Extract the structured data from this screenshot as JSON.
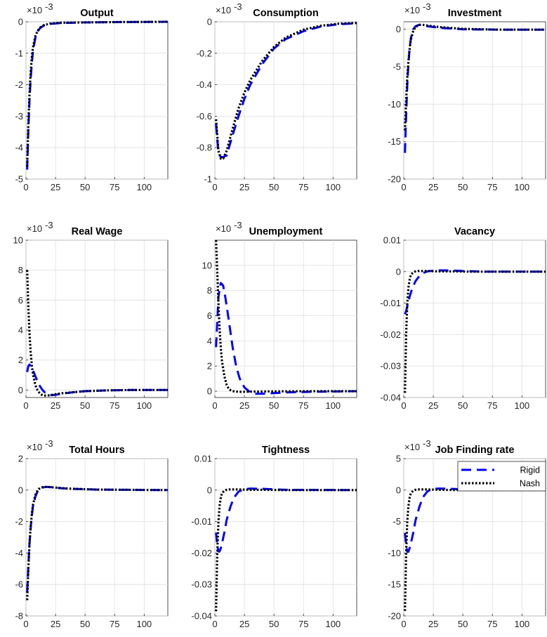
{
  "figure": {
    "legend": {
      "placement": "top-right",
      "entries": [
        "Rigid",
        "Nash"
      ]
    },
    "series_styles": {
      "Rigid": {
        "color": "#0000ff",
        "dash": "dashed"
      },
      "Nash": {
        "color": "#000000",
        "dash": "dotted"
      }
    }
  },
  "chart_data": [
    {
      "type": "line",
      "title": "Output",
      "xlabel": "",
      "ylabel": "",
      "exponent_label": "×10",
      "exponent_power": "-3",
      "xlim": [
        0,
        120
      ],
      "ylim": [
        -5,
        0
      ],
      "xticks": [
        0,
        25,
        50,
        75,
        100
      ],
      "xtick_labels": [
        "0",
        "25",
        "50",
        "75",
        "100"
      ],
      "yticks": [
        -5,
        -4,
        -3,
        -2,
        -1,
        0
      ],
      "ytick_labels": [
        "-5",
        "-4",
        "-3",
        "-2",
        "-1",
        "0"
      ],
      "grid": true,
      "series": [
        {
          "name": "Rigid",
          "x": [
            1,
            2,
            3,
            4,
            5,
            6,
            8,
            10,
            12,
            15,
            20,
            30,
            50,
            80,
            120
          ],
          "y": [
            -4.7,
            -3.4,
            -2.5,
            -1.8,
            -1.3,
            -0.9,
            -0.5,
            -0.3,
            -0.2,
            -0.12,
            -0.07,
            -0.04,
            -0.02,
            -0.01,
            0
          ]
        },
        {
          "name": "Nash",
          "x": [
            1,
            2,
            3,
            4,
            5,
            6,
            8,
            10,
            12,
            15,
            20,
            30,
            50,
            80,
            120
          ],
          "y": [
            -4.6,
            -3.2,
            -2.3,
            -1.6,
            -1.1,
            -0.8,
            -0.45,
            -0.28,
            -0.18,
            -0.11,
            -0.06,
            -0.03,
            -0.02,
            -0.01,
            0
          ]
        }
      ]
    },
    {
      "type": "line",
      "title": "Consumption",
      "xlabel": "",
      "ylabel": "",
      "exponent_label": "×10",
      "exponent_power": "-3",
      "xlim": [
        0,
        120
      ],
      "ylim": [
        -1,
        0
      ],
      "xticks": [
        0,
        25,
        50,
        75,
        100
      ],
      "xtick_labels": [
        "0",
        "25",
        "50",
        "75",
        "100"
      ],
      "yticks": [
        -1,
        -0.8,
        -0.6,
        -0.4,
        -0.2,
        0
      ],
      "ytick_labels": [
        "-1",
        "-0.8",
        "-0.6",
        "-0.4",
        "-0.2",
        "0"
      ],
      "grid": true,
      "series": [
        {
          "name": "Rigid",
          "x": [
            1,
            2,
            3,
            5,
            7,
            10,
            15,
            20,
            25,
            30,
            40,
            50,
            60,
            75,
            90,
            105,
            120
          ],
          "y": [
            -0.65,
            -0.75,
            -0.83,
            -0.86,
            -0.86,
            -0.85,
            -0.72,
            -0.6,
            -0.49,
            -0.4,
            -0.27,
            -0.17,
            -0.11,
            -0.06,
            -0.03,
            -0.015,
            -0.01
          ]
        },
        {
          "name": "Nash",
          "x": [
            1,
            2,
            3,
            5,
            7,
            10,
            15,
            20,
            25,
            30,
            40,
            50,
            60,
            75,
            90,
            105,
            120
          ],
          "y": [
            -0.62,
            -0.72,
            -0.82,
            -0.87,
            -0.87,
            -0.82,
            -0.68,
            -0.55,
            -0.45,
            -0.37,
            -0.25,
            -0.16,
            -0.1,
            -0.05,
            -0.025,
            -0.012,
            -0.008
          ]
        }
      ]
    },
    {
      "type": "line",
      "title": "Investment",
      "xlabel": "",
      "ylabel": "",
      "exponent_label": "×10",
      "exponent_power": "-3",
      "xlim": [
        0,
        120
      ],
      "ylim": [
        -20,
        1
      ],
      "xticks": [
        0,
        25,
        50,
        75,
        100
      ],
      "xtick_labels": [
        "0",
        "25",
        "50",
        "75",
        "100"
      ],
      "yticks": [
        -20,
        -15,
        -10,
        -5,
        0
      ],
      "ytick_labels": [
        "-20",
        "-15",
        "-10",
        "-5",
        "0"
      ],
      "grid": true,
      "series": [
        {
          "name": "Rigid",
          "x": [
            1,
            2,
            3,
            4,
            5,
            6,
            8,
            10,
            13,
            16,
            20,
            30,
            50,
            80,
            120
          ],
          "y": [
            -16.5,
            -11.5,
            -7.5,
            -4.5,
            -2.5,
            -1.2,
            0,
            0.4,
            0.6,
            0.5,
            0.4,
            0.2,
            0,
            -0.05,
            -0.05
          ]
        },
        {
          "name": "Nash",
          "x": [
            1,
            2,
            3,
            4,
            5,
            6,
            8,
            10,
            13,
            16,
            20,
            30,
            50,
            80,
            120
          ],
          "y": [
            -13.5,
            -9.5,
            -6.5,
            -4.2,
            -2.6,
            -1.4,
            -0.2,
            0.3,
            0.6,
            0.6,
            0.5,
            0.3,
            0.05,
            -0.05,
            -0.05
          ]
        }
      ]
    },
    {
      "type": "line",
      "title": "Real Wage",
      "xlabel": "",
      "ylabel": "",
      "exponent_label": "×10",
      "exponent_power": "-3",
      "xlim": [
        0,
        120
      ],
      "ylim": [
        -0.5,
        10
      ],
      "xticks": [
        0,
        25,
        50,
        75,
        100
      ],
      "xtick_labels": [
        "0",
        "25",
        "50",
        "75",
        "100"
      ],
      "yticks": [
        0,
        2,
        4,
        6,
        8,
        10
      ],
      "ytick_labels": [
        "0",
        "2",
        "4",
        "6",
        "8",
        "10"
      ],
      "grid": true,
      "series": [
        {
          "name": "Rigid",
          "x": [
            1,
            2,
            3,
            5,
            8,
            11,
            14,
            17,
            20,
            25,
            30,
            40,
            50,
            70,
            90,
            120
          ],
          "y": [
            1.2,
            1.6,
            1.7,
            1.5,
            0.9,
            0.35,
            0.0,
            -0.25,
            -0.35,
            -0.32,
            -0.25,
            -0.15,
            -0.08,
            -0.02,
            0.0,
            0.0
          ]
        },
        {
          "name": "Nash",
          "x": [
            1,
            2,
            3,
            4,
            5,
            6,
            8,
            10,
            12,
            14,
            17,
            20,
            25,
            30,
            40,
            50,
            70,
            90,
            120
          ],
          "y": [
            8.0,
            5.5,
            3.8,
            2.5,
            1.6,
            1.0,
            0.3,
            -0.05,
            -0.25,
            -0.35,
            -0.38,
            -0.35,
            -0.28,
            -0.22,
            -0.15,
            -0.08,
            -0.02,
            0.0,
            0.0
          ]
        }
      ]
    },
    {
      "type": "line",
      "title": "Unemployment",
      "xlabel": "",
      "ylabel": "",
      "exponent_label": "×10",
      "exponent_power": "-3",
      "xlim": [
        0,
        120
      ],
      "ylim": [
        -0.5,
        12
      ],
      "xticks": [
        0,
        25,
        50,
        75,
        100
      ],
      "xtick_labels": [
        "0",
        "25",
        "50",
        "75",
        "100"
      ],
      "yticks": [
        0,
        2,
        4,
        6,
        8,
        10
      ],
      "ytick_labels": [
        "0",
        "2",
        "4",
        "6",
        "8",
        "10"
      ],
      "grid": true,
      "series": [
        {
          "name": "Rigid",
          "x": [
            1,
            2,
            3,
            5,
            7,
            9,
            12,
            15,
            18,
            21,
            25,
            30,
            35,
            40,
            50,
            60,
            80,
            120
          ],
          "y": [
            3.5,
            5.5,
            7.5,
            8.6,
            8.4,
            7.4,
            5.5,
            3.5,
            2.0,
            1.0,
            0.3,
            -0.1,
            -0.2,
            -0.2,
            -0.15,
            -0.1,
            -0.05,
            0.0
          ]
        },
        {
          "name": "Nash",
          "x": [
            1,
            2,
            3,
            4,
            5,
            6,
            8,
            10,
            12,
            15,
            20,
            25,
            30,
            40,
            50,
            80,
            120
          ],
          "y": [
            12.0,
            9.5,
            7.0,
            5.0,
            3.5,
            2.4,
            1.2,
            0.5,
            0.15,
            0.0,
            -0.05,
            -0.05,
            -0.03,
            -0.02,
            -0.01,
            0.0,
            0.0
          ]
        }
      ]
    },
    {
      "type": "line",
      "title": "Vacancy",
      "xlabel": "",
      "ylabel": "",
      "exponent_label": "",
      "exponent_power": "",
      "xlim": [
        0,
        120
      ],
      "ylim": [
        -0.04,
        0.01
      ],
      "xticks": [
        0,
        25,
        50,
        75,
        100
      ],
      "xtick_labels": [
        "0",
        "25",
        "50",
        "75",
        "100"
      ],
      "yticks": [
        -0.04,
        -0.03,
        -0.02,
        -0.01,
        0,
        0.01
      ],
      "ytick_labels": [
        "-0.04",
        "-0.03",
        "-0.02",
        "-0.01",
        "0",
        "0.01"
      ],
      "grid": true,
      "series": [
        {
          "name": "Rigid",
          "x": [
            1,
            2,
            3,
            5,
            7,
            10,
            13,
            16,
            20,
            25,
            30,
            40,
            50,
            70,
            120
          ],
          "y": [
            -0.0135,
            -0.0125,
            -0.011,
            -0.008,
            -0.0055,
            -0.003,
            -0.0015,
            -0.0005,
            0.0001,
            0.0003,
            0.0004,
            0.0004,
            0.0002,
            0.0,
            0.0
          ]
        },
        {
          "name": "Nash",
          "x": [
            1,
            2,
            3,
            4,
            5,
            6,
            8,
            10,
            12,
            15,
            20,
            30,
            40,
            60,
            120
          ],
          "y": [
            -0.0385,
            -0.02,
            -0.01,
            -0.005,
            -0.0025,
            -0.001,
            -0.0002,
            0.0001,
            0.0002,
            0.0002,
            0.0002,
            0.0001,
            0.0001,
            0.0,
            0.0
          ]
        }
      ]
    },
    {
      "type": "line",
      "title": "Total Hours",
      "xlabel": "",
      "ylabel": "",
      "exponent_label": "×10",
      "exponent_power": "-3",
      "xlim": [
        0,
        120
      ],
      "ylim": [
        -8,
        2
      ],
      "xticks": [
        0,
        25,
        50,
        75,
        100
      ],
      "xtick_labels": [
        "0",
        "25",
        "50",
        "75",
        "100"
      ],
      "yticks": [
        -8,
        -6,
        -4,
        -2,
        0,
        2
      ],
      "ytick_labels": [
        "-8",
        "-6",
        "-4",
        "-2",
        "0",
        "2"
      ],
      "grid": true,
      "series": [
        {
          "name": "Rigid",
          "x": [
            1,
            2,
            3,
            4,
            5,
            6,
            8,
            10,
            12,
            15,
            18,
            22,
            30,
            40,
            60,
            120
          ],
          "y": [
            -6.5,
            -4.8,
            -3.4,
            -2.4,
            -1.6,
            -1.0,
            -0.4,
            -0.05,
            0.1,
            0.18,
            0.2,
            0.18,
            0.12,
            0.08,
            0.03,
            0.0
          ]
        },
        {
          "name": "Nash",
          "x": [
            1,
            2,
            3,
            4,
            5,
            6,
            8,
            10,
            12,
            15,
            18,
            22,
            30,
            40,
            60,
            120
          ],
          "y": [
            -7.0,
            -5.0,
            -3.4,
            -2.3,
            -1.5,
            -0.9,
            -0.3,
            0.0,
            0.15,
            0.2,
            0.2,
            0.18,
            0.12,
            0.08,
            0.03,
            0.0
          ]
        }
      ]
    },
    {
      "type": "line",
      "title": "Tightness",
      "xlabel": "",
      "ylabel": "",
      "exponent_label": "",
      "exponent_power": "",
      "xlim": [
        0,
        120
      ],
      "ylim": [
        -0.04,
        0.01
      ],
      "xticks": [
        0,
        25,
        50,
        75,
        100
      ],
      "xtick_labels": [
        "0",
        "25",
        "50",
        "75",
        "100"
      ],
      "yticks": [
        -0.04,
        -0.03,
        -0.02,
        -0.01,
        0,
        0.01
      ],
      "ytick_labels": [
        "-0.04",
        "-0.03",
        "-0.02",
        "-0.01",
        "0",
        "0.01"
      ],
      "grid": true,
      "series": [
        {
          "name": "Rigid",
          "x": [
            1,
            2,
            3,
            4,
            5,
            6,
            8,
            10,
            13,
            16,
            20,
            25,
            30,
            40,
            60,
            120
          ],
          "y": [
            -0.0135,
            -0.0175,
            -0.0195,
            -0.0195,
            -0.0185,
            -0.017,
            -0.0135,
            -0.0095,
            -0.0055,
            -0.0025,
            -0.0005,
            0.0003,
            0.0005,
            0.0004,
            0.0001,
            0.0
          ]
        },
        {
          "name": "Nash",
          "x": [
            1,
            2,
            3,
            4,
            5,
            6,
            8,
            10,
            12,
            15,
            20,
            30,
            40,
            60,
            120
          ],
          "y": [
            -0.0385,
            -0.02,
            -0.01,
            -0.005,
            -0.0025,
            -0.001,
            -0.0002,
            0.0001,
            0.0002,
            0.0002,
            0.0002,
            0.0001,
            0.0001,
            0.0,
            0.0
          ]
        }
      ]
    },
    {
      "type": "line",
      "title": "Job Finding rate",
      "xlabel": "",
      "ylabel": "",
      "exponent_label": "×10",
      "exponent_power": "-3",
      "xlim": [
        0,
        120
      ],
      "ylim": [
        -20,
        5
      ],
      "xticks": [
        0,
        25,
        50,
        75,
        100
      ],
      "xtick_labels": [
        "0",
        "25",
        "50",
        "75",
        "100"
      ],
      "yticks": [
        -20,
        -15,
        -10,
        -5,
        0,
        5
      ],
      "ytick_labels": [
        "-20",
        "-15",
        "-10",
        "-5",
        "0",
        "5"
      ],
      "grid": true,
      "series": [
        {
          "name": "Rigid",
          "x": [
            1,
            2,
            3,
            4,
            5,
            6,
            8,
            10,
            13,
            16,
            20,
            25,
            30,
            40,
            60,
            120
          ],
          "y": [
            -6.8,
            -8.8,
            -9.8,
            -9.8,
            -9.2,
            -8.5,
            -6.8,
            -4.8,
            -2.8,
            -1.2,
            -0.2,
            0.2,
            0.25,
            0.2,
            0.05,
            0.0
          ]
        },
        {
          "name": "Nash",
          "x": [
            1,
            2,
            3,
            4,
            5,
            6,
            8,
            10,
            12,
            15,
            20,
            30,
            40,
            60,
            120
          ],
          "y": [
            -19.2,
            -10.0,
            -5.0,
            -2.5,
            -1.2,
            -0.5,
            -0.1,
            0.05,
            0.1,
            0.1,
            0.1,
            0.05,
            0.02,
            0.0,
            0.0
          ]
        }
      ]
    }
  ]
}
